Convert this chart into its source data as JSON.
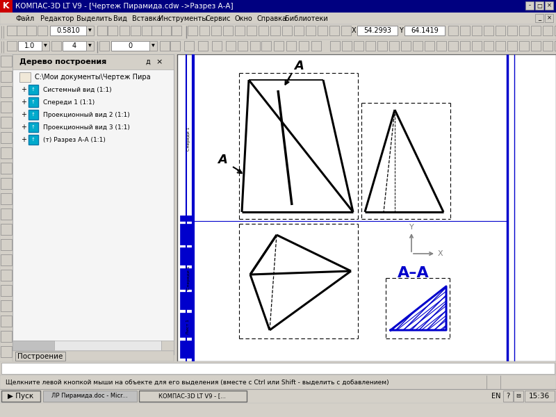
{
  "title": "КОМПАС-3D LT V9 - [Чертеж Пирамида.cdw ->Разрез А-А]",
  "bg_color": "#d4d0c8",
  "canvas_color": "#ffffff",
  "titlebar_color": "#000080",
  "menubar_color": "#d4d0c8",
  "toolbar_color": "#d4d0c8",
  "sidebar_title": "Дерево построения",
  "sidebar_items": [
    "С:\\Мои документы\\Чертеж Пира",
    "Системный вид (1:1)",
    "Спереди 1 (1:1)",
    "Проекционный вид 2 (1:1)",
    "Проекционный вид 3 (1:1)",
    "(т) Разрез А-А (1:1)"
  ],
  "bottom_tab": "Построение",
  "status_text": "Щелкните левой кнопкой мыши на объекте для его выделения (вместе с Ctrl или Shift - выделить с добавлением)",
  "taskbar_time": "15:36",
  "zoom_value": "0.5810",
  "line_width_value": "1.0",
  "layer_value": "4",
  "snap_value": "0",
  "coord_x": "54.2993",
  "coord_y": "64.1419",
  "blue": "#0000cc",
  "gray": "#808080"
}
